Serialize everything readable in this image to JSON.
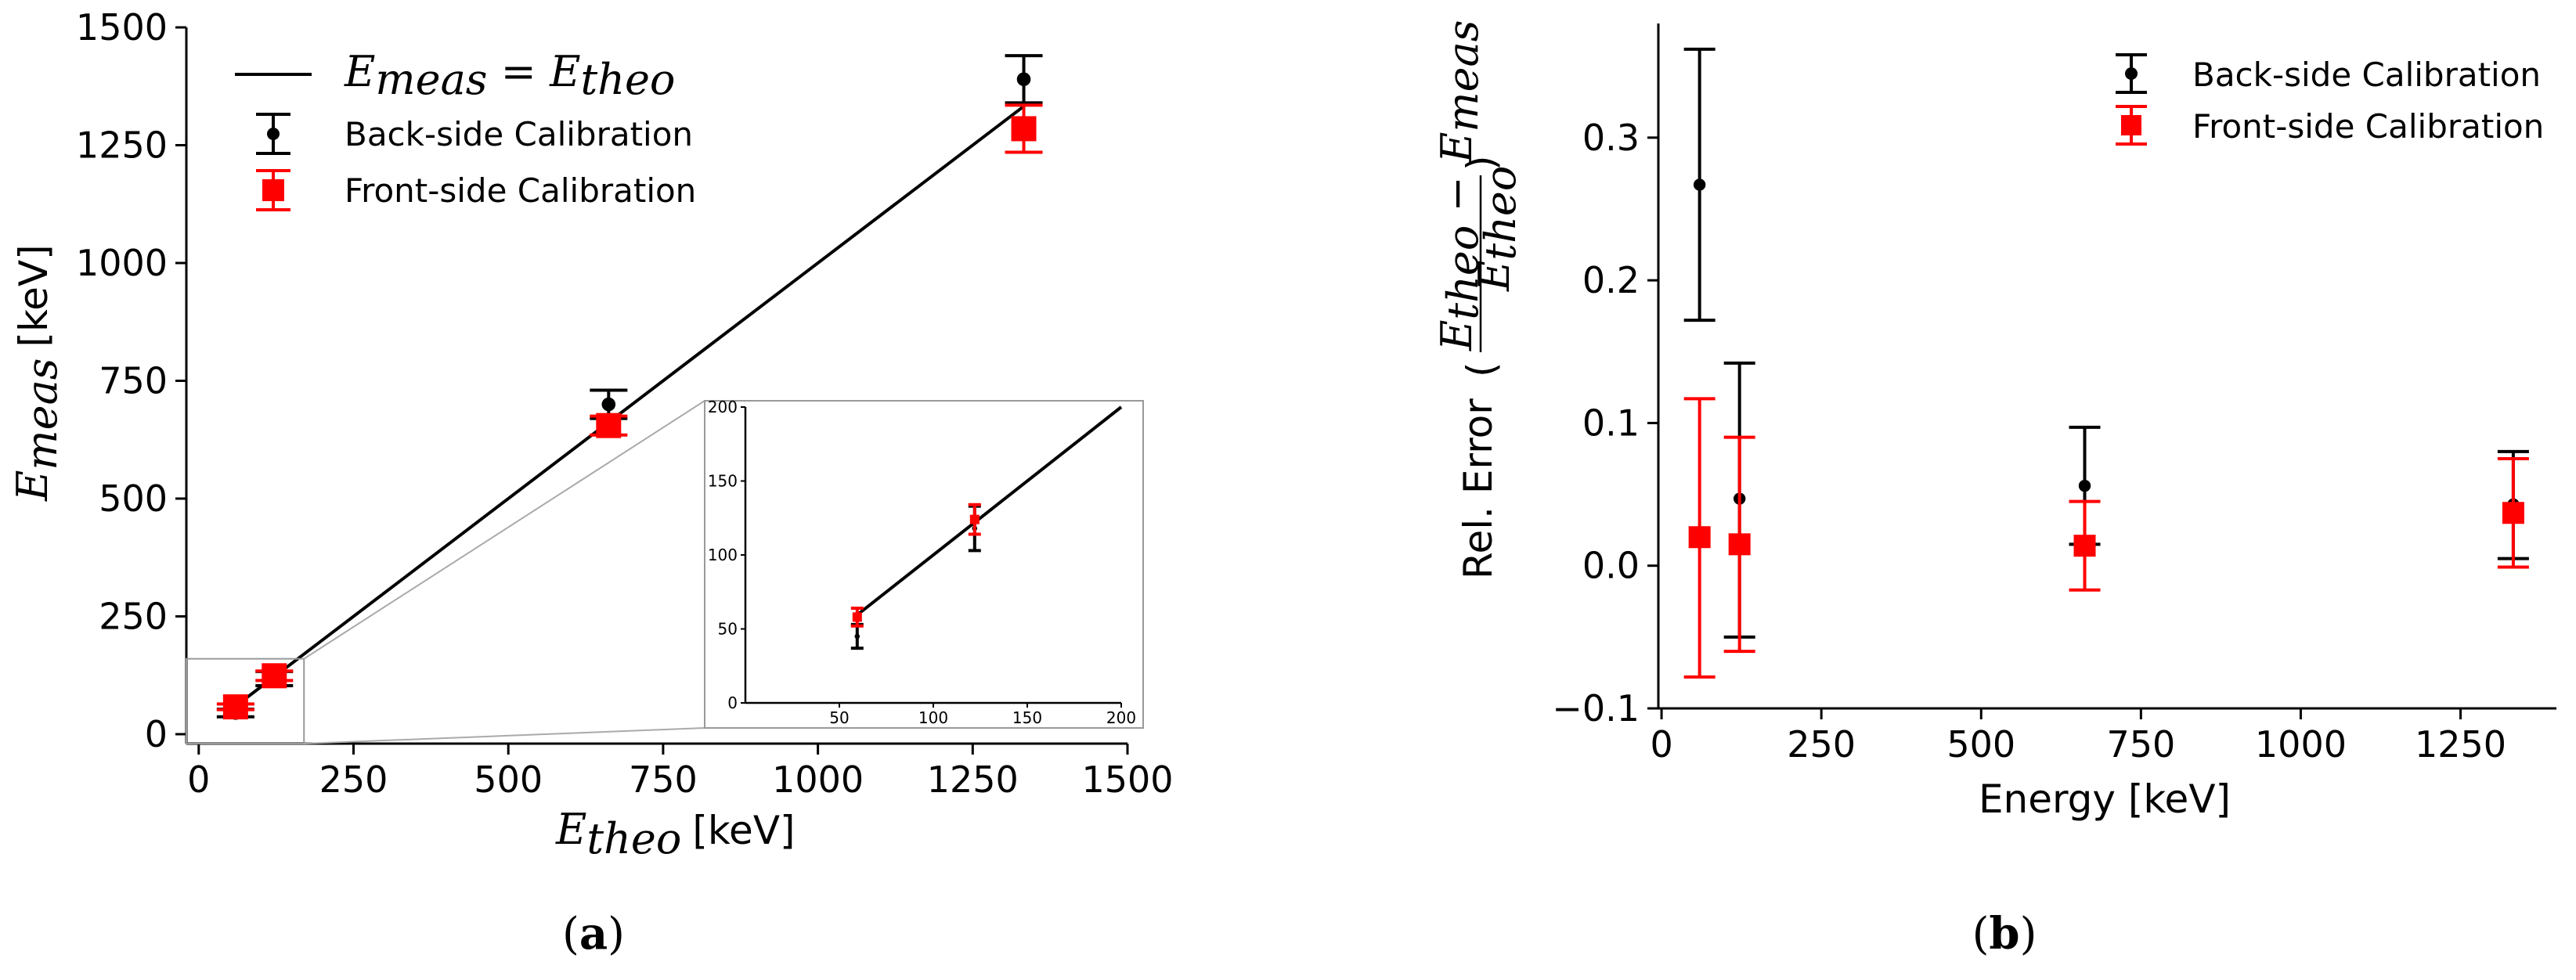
{
  "figure": {
    "caption_a": "a",
    "caption_b": "b"
  },
  "chart_data": [
    {
      "type": "scatter",
      "panel": "a",
      "xlabel": "E_theo [keV]",
      "xlabel_main": "E",
      "xlabel_sub": "theo",
      "xlabel_unit": "[keV]",
      "ylabel_main": "E",
      "ylabel_sub": "meas",
      "ylabel_unit": "[keV]",
      "xlim": [
        -20,
        1500
      ],
      "ylim": [
        -20,
        1500
      ],
      "xticks": [
        0,
        250,
        500,
        750,
        1000,
        1250,
        1500
      ],
      "yticks": [
        0,
        250,
        500,
        750,
        1000,
        1250,
        1500
      ],
      "grid": false,
      "legend_position": "top-left",
      "legend": {
        "line_main": "E",
        "line_sub1": "meas",
        "line_eq": " = E",
        "line_sub2": "theo",
        "back": "Back-side Calibration",
        "front": "Front-side Calibration"
      },
      "reference_line": {
        "name": "E_meas = E_theo",
        "x": [
          59.5,
          1332.5
        ],
        "y": [
          59.5,
          1332.5
        ],
        "color": "#000000"
      },
      "series": [
        {
          "name": "Back-side Calibration",
          "color": "#000000",
          "marker": "circle",
          "x": [
            59.5,
            122,
            662,
            1332.5
          ],
          "y": [
            45,
            118,
            700,
            1390
          ],
          "err_low": [
            8,
            15,
            30,
            50
          ],
          "err_high": [
            8,
            15,
            30,
            50
          ]
        },
        {
          "name": "Front-side Calibration",
          "color": "#ff0000",
          "marker": "square",
          "x": [
            59.5,
            122,
            662,
            1332.5
          ],
          "y": [
            58,
            124,
            655,
            1285
          ],
          "err_low": [
            6,
            10,
            20,
            50
          ],
          "err_high": [
            6,
            10,
            20,
            50
          ]
        }
      ],
      "inset": {
        "xlim": [
          0,
          200
        ],
        "ylim": [
          0,
          200
        ],
        "xticks": [
          50,
          100,
          150,
          200
        ],
        "yticks": [
          0,
          50,
          100,
          150,
          200
        ],
        "zoom_box": {
          "x": [
            -20,
            170
          ],
          "y": [
            -20,
            160
          ]
        }
      }
    },
    {
      "type": "scatter",
      "panel": "b",
      "xlabel": "Energy [keV]",
      "ylabel_prefix": "Rel. Error",
      "ylabel_num_1": "E",
      "ylabel_num_sub1": "theo",
      "ylabel_num_minus": " − E",
      "ylabel_num_sub2": "meas",
      "ylabel_den": "E",
      "ylabel_den_sub": "theo",
      "xlim": [
        -5,
        1400
      ],
      "ylim": [
        -0.1,
        0.38
      ],
      "xticks": [
        0,
        250,
        500,
        750,
        1000,
        1250
      ],
      "yticks": [
        -0.1,
        0.0,
        0.1,
        0.2,
        0.3
      ],
      "ytick_labels": [
        "−0.1",
        "0.0",
        "0.1",
        "0.2",
        "0.3"
      ],
      "grid": false,
      "legend_position": "top-right",
      "series": [
        {
          "name": "Back-side Calibration",
          "color": "#000000",
          "marker": "circle",
          "x": [
            59.5,
            122,
            662,
            1332.5
          ],
          "y": [
            0.267,
            0.047,
            0.056,
            0.043
          ],
          "err_low": [
            0.095,
            0.097,
            0.041,
            0.038
          ],
          "err_high": [
            0.095,
            0.095,
            0.041,
            0.037
          ]
        },
        {
          "name": "Front-side Calibration",
          "color": "#ff0000",
          "marker": "square",
          "x": [
            59.5,
            122,
            662,
            1332.5
          ],
          "y": [
            0.02,
            0.015,
            0.014,
            0.037
          ],
          "err_low": [
            0.098,
            0.075,
            0.031,
            0.038
          ],
          "err_high": [
            0.097,
            0.075,
            0.031,
            0.038
          ]
        }
      ]
    }
  ]
}
